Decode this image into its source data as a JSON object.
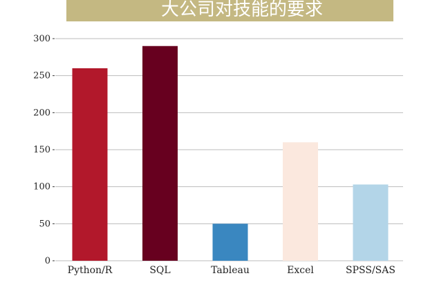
{
  "chart_data": {
    "type": "bar",
    "title": "大公司对技能的要求",
    "xlabel": "",
    "ylabel": "",
    "categories": [
      "Python/R",
      "SQL",
      "Tableau",
      "Excel",
      "SPSS/SAS"
    ],
    "values": [
      260,
      290,
      50,
      160,
      103
    ],
    "colors": [
      "#b2182b",
      "#67001f",
      "#3a87c0",
      "#fbe8de",
      "#b3d5e8"
    ],
    "ylim": [
      0,
      300
    ],
    "yticks": [
      0,
      50,
      100,
      150,
      200,
      250,
      300
    ],
    "grid": "horizontal",
    "legend": "none"
  },
  "style": {
    "title_background": "#c4b882",
    "grid_color": "#bbbbbb"
  }
}
